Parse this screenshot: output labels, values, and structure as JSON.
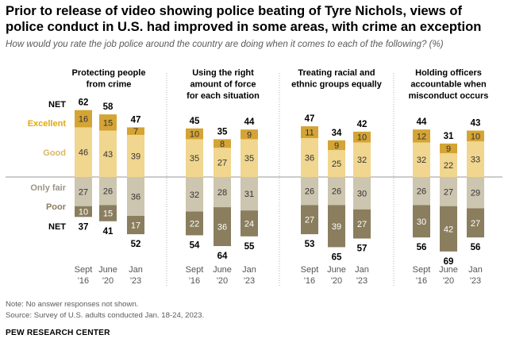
{
  "title": "Prior to release of video showing police beating of Tyre Nichols, views of police conduct in U.S. had improved in some areas, with crime an exception",
  "subtitle": "How would you rate the job police around the country are doing when it comes to each of the following? (%)",
  "notes": {
    "note": "Note: No answer responses not shown.",
    "source": "Source: Survey of U.S. adults conducted Jan. 18-24, 2023."
  },
  "brand": "PEW RESEARCH CENTER",
  "colors": {
    "excellent": "#d4a434",
    "good": "#f0d68e",
    "only_fair": "#ccc5af",
    "poor": "#8a7e5e",
    "net_positive_label": "#e0a90f",
    "good_label": "#d9b765",
    "only_fair_label": "#9a9487",
    "poor_label": "#8a7e5e",
    "divider": "#9a9a9a"
  },
  "chart_data": {
    "type": "bar",
    "stacked": "diverging",
    "title": "Prior to release of video showing police beating of Tyre Nichols, views of police conduct in U.S. had improved in some areas, with crime an exception",
    "unit": "%",
    "legend": [
      {
        "key": "net_positive",
        "label": "NET"
      },
      {
        "key": "excellent",
        "label": "Excellent"
      },
      {
        "key": "good",
        "label": "Good"
      },
      {
        "key": "only_fair",
        "label": "Only fair"
      },
      {
        "key": "poor",
        "label": "Poor"
      },
      {
        "key": "net_negative",
        "label": "NET"
      }
    ],
    "periods": [
      {
        "line1": "Sept",
        "line2": "'16"
      },
      {
        "line1": "June",
        "line2": "'20"
      },
      {
        "line1": "Jan",
        "line2": "'23"
      }
    ],
    "panels": [
      {
        "title_lines": [
          "Protecting people",
          "from crime"
        ],
        "net_positive": [
          62,
          58,
          47
        ],
        "excellent": [
          16,
          15,
          7
        ],
        "good": [
          46,
          43,
          39
        ],
        "only_fair": [
          27,
          26,
          36
        ],
        "poor": [
          10,
          15,
          17
        ],
        "net_negative": [
          37,
          41,
          52
        ]
      },
      {
        "title_lines": [
          "Using the right",
          "amount of force",
          "for each situation"
        ],
        "net_positive": [
          45,
          35,
          44
        ],
        "excellent": [
          10,
          8,
          9
        ],
        "good": [
          35,
          27,
          35
        ],
        "only_fair": [
          32,
          28,
          31
        ],
        "poor": [
          22,
          36,
          24
        ],
        "net_negative": [
          54,
          64,
          55
        ]
      },
      {
        "title_lines": [
          "Treating racial and",
          "ethnic groups equally"
        ],
        "net_positive": [
          47,
          34,
          42
        ],
        "excellent": [
          11,
          9,
          10
        ],
        "good": [
          36,
          25,
          32
        ],
        "only_fair": [
          26,
          26,
          30
        ],
        "poor": [
          27,
          39,
          27
        ],
        "net_negative": [
          53,
          65,
          57
        ]
      },
      {
        "title_lines": [
          "Holding officers",
          "accountable when",
          "misconduct occurs"
        ],
        "net_positive": [
          44,
          31,
          43
        ],
        "excellent": [
          12,
          9,
          10
        ],
        "good": [
          32,
          22,
          33
        ],
        "only_fair": [
          26,
          27,
          29
        ],
        "poor": [
          30,
          42,
          27
        ],
        "net_negative": [
          56,
          69,
          56
        ]
      }
    ]
  }
}
